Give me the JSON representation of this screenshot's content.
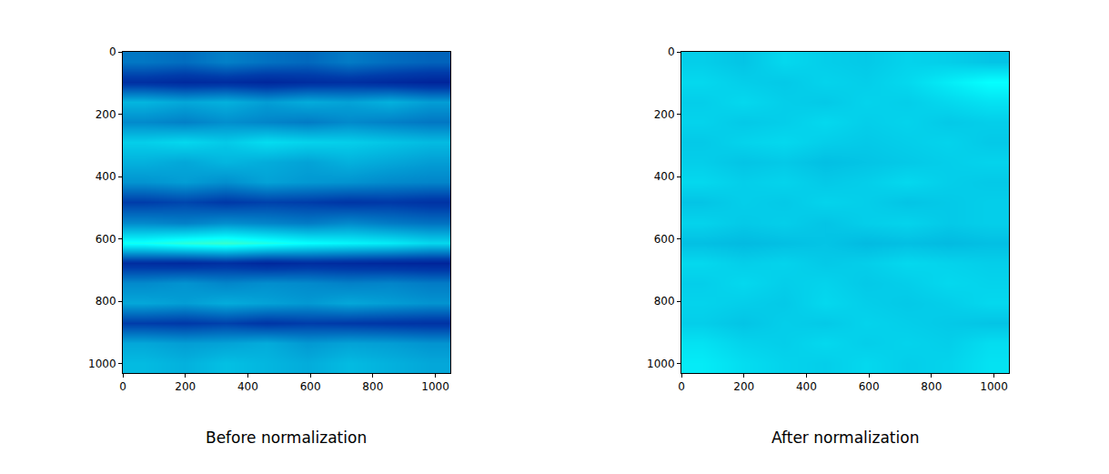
{
  "chart_data": [
    {
      "type": "heatmap",
      "title": "Before normalization",
      "color": "jet",
      "xlim": [
        0,
        1048
      ],
      "ylim": [
        1030,
        0
      ],
      "xticks": [
        0,
        200,
        400,
        600,
        800,
        1000
      ],
      "yticks": [
        0,
        200,
        400,
        600,
        800,
        1000
      ],
      "zlim": [
        0,
        1.6
      ],
      "cells": [
        [
          0.32,
          0.3,
          0.34,
          0.31,
          0.29,
          0.33,
          0.3,
          0.28
        ],
        [
          0.16,
          0.14,
          0.15,
          0.13,
          0.15,
          0.16,
          0.14,
          0.12
        ],
        [
          0.45,
          0.42,
          0.44,
          0.4,
          0.43,
          0.41,
          0.44,
          0.4
        ],
        [
          0.36,
          0.34,
          0.37,
          0.35,
          0.33,
          0.36,
          0.34,
          0.32
        ],
        [
          0.5,
          0.52,
          0.49,
          0.53,
          0.51,
          0.5,
          0.48,
          0.46
        ],
        [
          0.44,
          0.42,
          0.45,
          0.43,
          0.41,
          0.44,
          0.42,
          0.4
        ],
        [
          0.38,
          0.4,
          0.37,
          0.41,
          0.39,
          0.38,
          0.36,
          0.35
        ],
        [
          0.2,
          0.22,
          0.19,
          0.21,
          0.2,
          0.18,
          0.19,
          0.17
        ],
        [
          0.36,
          0.34,
          0.37,
          0.35,
          0.33,
          0.36,
          0.33,
          0.31
        ],
        [
          0.62,
          0.66,
          0.68,
          0.64,
          0.6,
          0.58,
          0.56,
          0.52
        ],
        [
          0.15,
          0.14,
          0.16,
          0.13,
          0.15,
          0.14,
          0.13,
          0.12
        ],
        [
          0.36,
          0.38,
          0.35,
          0.37,
          0.36,
          0.34,
          0.35,
          0.33
        ],
        [
          0.42,
          0.4,
          0.43,
          0.41,
          0.39,
          0.42,
          0.4,
          0.38
        ],
        [
          0.2,
          0.19,
          0.21,
          0.18,
          0.2,
          0.19,
          0.18,
          0.17
        ],
        [
          0.42,
          0.4,
          0.41,
          0.43,
          0.39,
          0.41,
          0.4,
          0.38
        ],
        [
          0.46,
          0.44,
          0.47,
          0.45,
          0.43,
          0.46,
          0.44,
          0.42
        ]
      ]
    },
    {
      "type": "heatmap",
      "title": "After normalization",
      "color": "jet",
      "xlim": [
        0,
        1048
      ],
      "ylim": [
        1030,
        0
      ],
      "xticks": [
        0,
        200,
        400,
        600,
        800,
        1000
      ],
      "yticks": [
        0,
        200,
        400,
        600,
        800,
        1000
      ],
      "zlim": [
        0,
        1.6
      ],
      "cells": [
        [
          0.5,
          0.48,
          0.52,
          0.5,
          0.49,
          0.51,
          0.5,
          0.48
        ],
        [
          0.52,
          0.5,
          0.49,
          0.51,
          0.5,
          0.52,
          0.56,
          0.6
        ],
        [
          0.5,
          0.52,
          0.5,
          0.49,
          0.51,
          0.5,
          0.52,
          0.54
        ],
        [
          0.51,
          0.49,
          0.5,
          0.52,
          0.5,
          0.51,
          0.49,
          0.5
        ],
        [
          0.49,
          0.51,
          0.52,
          0.5,
          0.49,
          0.5,
          0.51,
          0.49
        ],
        [
          0.5,
          0.48,
          0.49,
          0.47,
          0.48,
          0.49,
          0.5,
          0.51
        ],
        [
          0.52,
          0.5,
          0.51,
          0.49,
          0.5,
          0.52,
          0.5,
          0.49
        ],
        [
          0.48,
          0.5,
          0.49,
          0.51,
          0.5,
          0.48,
          0.49,
          0.5
        ],
        [
          0.51,
          0.49,
          0.5,
          0.48,
          0.5,
          0.51,
          0.49,
          0.5
        ],
        [
          0.47,
          0.46,
          0.47,
          0.48,
          0.46,
          0.47,
          0.46,
          0.47
        ],
        [
          0.52,
          0.5,
          0.51,
          0.49,
          0.5,
          0.52,
          0.51,
          0.5
        ],
        [
          0.5,
          0.52,
          0.5,
          0.51,
          0.49,
          0.5,
          0.52,
          0.51
        ],
        [
          0.51,
          0.5,
          0.49,
          0.52,
          0.5,
          0.49,
          0.5,
          0.52
        ],
        [
          0.5,
          0.48,
          0.5,
          0.49,
          0.51,
          0.5,
          0.49,
          0.48
        ],
        [
          0.54,
          0.51,
          0.5,
          0.52,
          0.5,
          0.51,
          0.5,
          0.53
        ],
        [
          0.56,
          0.53,
          0.51,
          0.5,
          0.52,
          0.5,
          0.51,
          0.54
        ]
      ]
    }
  ]
}
